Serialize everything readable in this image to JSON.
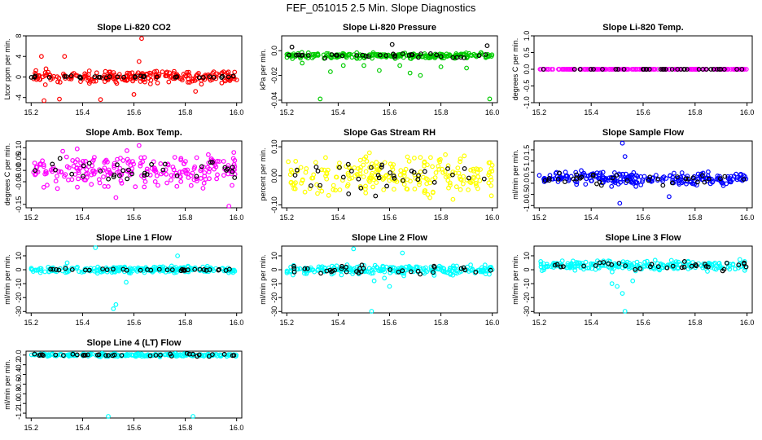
{
  "figure": {
    "title": "FEF_051015  2.5 Min. Slope Diagnostics"
  },
  "chart_data": [
    {
      "type": "scatter",
      "title": "Slope Li-820 CO2",
      "ylabel": "Ltcor ppm per min.",
      "xlim": [
        15.18,
        16.02
      ],
      "ylim": [
        -5,
        8
      ],
      "xticks": [
        "15.2",
        "15.4",
        "15.6",
        "15.8",
        "16.0"
      ],
      "yticks": [
        {
          "v": -4,
          "l": "-4"
        },
        {
          "v": 0,
          "l": "0"
        },
        {
          "v": 4,
          "l": "4"
        },
        {
          "v": 8,
          "l": "8"
        }
      ],
      "series": [
        {
          "color": "#ff0000",
          "center": 0,
          "spread": 0.8,
          "count": 230,
          "seed": 11,
          "extra": [
            [
              15.63,
              7.5
            ],
            [
              15.31,
              -4.3
            ],
            [
              15.25,
              -4.6
            ],
            [
              15.47,
              -4.4
            ],
            [
              15.33,
              4.0
            ],
            [
              15.24,
              4.0
            ],
            [
              15.6,
              -3.4
            ],
            [
              15.62,
              3.0
            ],
            [
              15.84,
              -2.8
            ]
          ]
        },
        {
          "color": "#000000",
          "center": 0,
          "spread": 0.15,
          "count": 35,
          "seed": 12,
          "extra": []
        }
      ]
    },
    {
      "type": "scatter",
      "title": "Slope Li-820 Pressure",
      "ylabel": "kPa per min.",
      "xlim": [
        15.18,
        16.02
      ],
      "ylim": [
        -0.042,
        0.012
      ],
      "xticks": [
        "15.2",
        "15.4",
        "15.6",
        "15.8",
        "16.0"
      ],
      "yticks": [
        {
          "v": -0.04,
          "l": "-0.04"
        },
        {
          "v": -0.02,
          "l": "-0.02"
        },
        {
          "v": 0,
          "l": "0.0"
        }
      ],
      "series": [
        {
          "color": "#00cc00",
          "center": -0.004,
          "spread": 0.0015,
          "count": 230,
          "seed": 21,
          "extra": [
            [
              15.33,
              -0.039
            ],
            [
              15.99,
              -0.039
            ],
            [
              15.5,
              -0.012
            ],
            [
              15.56,
              -0.016
            ],
            [
              15.68,
              -0.018
            ],
            [
              15.8,
              -0.013
            ],
            [
              15.26,
              -0.01
            ],
            [
              15.42,
              -0.012
            ],
            [
              15.9,
              -0.014
            ],
            [
              15.72,
              -0.02
            ],
            [
              15.37,
              -0.017
            ],
            [
              15.64,
              -0.012
            ]
          ]
        },
        {
          "color": "#000000",
          "center": -0.004,
          "spread": 0.0012,
          "count": 35,
          "seed": 22,
          "extra": [
            [
              15.61,
              0.005
            ],
            [
              15.98,
              0.004
            ],
            [
              15.22,
              0.003
            ]
          ]
        }
      ]
    },
    {
      "type": "scatter",
      "title": "Slope Li-820 Temp.",
      "ylabel": "degrees C per min.",
      "xlim": [
        15.18,
        16.02
      ],
      "ylim": [
        -1,
        1
      ],
      "xticks": [
        "15.2",
        "15.4",
        "15.6",
        "15.8",
        "16.0"
      ],
      "yticks": [
        {
          "v": -1,
          "l": "-1.0"
        },
        {
          "v": -0.5,
          "l": "-0.5"
        },
        {
          "v": 0,
          "l": "0.0"
        },
        {
          "v": 0.5,
          "l": "0.5"
        },
        {
          "v": 1,
          "l": "1.0"
        }
      ],
      "series": [
        {
          "color": "#ff00ff",
          "center": 0,
          "spread": 0.0,
          "count": 230,
          "seed": 31,
          "extra": []
        },
        {
          "color": "#000000",
          "center": 0,
          "spread": 0.0,
          "count": 35,
          "seed": 32,
          "extra": []
        }
      ]
    },
    {
      "type": "scatter",
      "title": "Slope Amb. Box Temp.",
      "ylabel": "degrees C per min.",
      "xlim": [
        15.18,
        16.02
      ],
      "ylim": [
        -0.165,
        0.13
      ],
      "xticks": [
        "15.2",
        "15.4",
        "15.6",
        "15.8",
        "16.0"
      ],
      "yticks": [
        {
          "v": -0.15,
          "l": "-0.15"
        },
        {
          "v": -0.05,
          "l": "-0.05"
        },
        {
          "v": 0,
          "l": "0.00"
        },
        {
          "v": 0.05,
          "l": "0.05"
        },
        {
          "v": 0.1,
          "l": "0.10"
        }
      ],
      "series": [
        {
          "color": "#ff00ff",
          "center": 0.0,
          "spread": 0.05,
          "count": 230,
          "seed": 41,
          "extra": [
            [
              15.97,
              -0.16
            ],
            [
              15.53,
              -0.12
            ],
            [
              15.62,
              0.11
            ]
          ]
        },
        {
          "color": "#000000",
          "center": 0.0,
          "spread": 0.03,
          "count": 35,
          "seed": 42,
          "extra": []
        }
      ]
    },
    {
      "type": "scatter",
      "title": "Slope Gas Stream RH",
      "ylabel": "percent per min.",
      "xlim": [
        15.18,
        16.02
      ],
      "ylim": [
        -0.11,
        0.12
      ],
      "xticks": [
        "15.2",
        "15.4",
        "15.6",
        "15.8",
        "16.0"
      ],
      "yticks": [
        {
          "v": -0.1,
          "l": "-0.10"
        },
        {
          "v": 0,
          "l": "0.00"
        },
        {
          "v": 0.1,
          "l": "0.10"
        }
      ],
      "series": [
        {
          "color": "#ffff00",
          "center": 0,
          "spread": 0.045,
          "count": 230,
          "seed": 51,
          "extra": []
        },
        {
          "color": "#000000",
          "center": 0,
          "spread": 0.04,
          "count": 35,
          "seed": 52,
          "extra": []
        }
      ]
    },
    {
      "type": "scatter",
      "title": "Slope Sample Flow",
      "ylabel": "ml/min per min.",
      "xlim": [
        15.18,
        16.02
      ],
      "ylim": [
        -1.1,
        1.9
      ],
      "xticks": [
        "15.2",
        "15.4",
        "15.6",
        "15.8",
        "16.0"
      ],
      "yticks": [
        {
          "v": -1,
          "l": "-1.0"
        },
        {
          "v": -0.5,
          "l": "-0.5"
        },
        {
          "v": 0,
          "l": "0.0"
        },
        {
          "v": 0.5,
          "l": "0.5"
        },
        {
          "v": 1,
          "l": "1.0"
        },
        {
          "v": 1.5,
          "l": "1.5"
        }
      ],
      "series": [
        {
          "color": "#0000ff",
          "center": 0.2,
          "spread": 0.2,
          "count": 230,
          "seed": 61,
          "extra": [
            [
              15.52,
              1.8
            ],
            [
              15.53,
              1.2
            ],
            [
              15.51,
              -0.9
            ],
            [
              15.7,
              -0.6
            ]
          ]
        },
        {
          "color": "#000000",
          "center": 0.2,
          "spread": 0.2,
          "count": 35,
          "seed": 62,
          "extra": []
        }
      ]
    },
    {
      "type": "scatter",
      "title": "Slope Line 1 Flow",
      "ylabel": "ml/min per min.",
      "xlim": [
        15.18,
        16.02
      ],
      "ylim": [
        -31,
        17
      ],
      "xticks": [
        "15.2",
        "15.4",
        "15.6",
        "15.8",
        "16.0"
      ],
      "yticks": [
        {
          "v": -30,
          "l": "-30"
        },
        {
          "v": -20,
          "l": "-20"
        },
        {
          "v": -10,
          "l": "-10"
        },
        {
          "v": 0,
          "l": "0"
        },
        {
          "v": 10,
          "l": "10"
        }
      ],
      "series": [
        {
          "color": "#00ffff",
          "center": 0,
          "spread": 1.5,
          "count": 230,
          "seed": 71,
          "extra": [
            [
              15.45,
              16
            ],
            [
              15.53,
              -25
            ],
            [
              15.52,
              -28
            ],
            [
              15.57,
              -9
            ],
            [
              15.77,
              10
            ],
            [
              15.34,
              5
            ]
          ]
        },
        {
          "color": "#000000",
          "center": 0,
          "spread": 0.6,
          "count": 35,
          "seed": 72,
          "extra": []
        }
      ]
    },
    {
      "type": "scatter",
      "title": "Slope Line 2 Flow",
      "ylabel": "ml/min per min.",
      "xlim": [
        15.18,
        16.02
      ],
      "ylim": [
        -31,
        17
      ],
      "xticks": [
        "15.2",
        "15.4",
        "15.6",
        "15.8",
        "16.0"
      ],
      "yticks": [
        {
          "v": -30,
          "l": "-30"
        },
        {
          "v": -20,
          "l": "-20"
        },
        {
          "v": -10,
          "l": "-10"
        },
        {
          "v": 0,
          "l": "0"
        },
        {
          "v": 10,
          "l": "10"
        }
      ],
      "series": [
        {
          "color": "#00ffff",
          "center": 0,
          "spread": 2.5,
          "count": 230,
          "seed": 81,
          "extra": [
            [
              15.46,
              15
            ],
            [
              15.53,
              -30
            ],
            [
              15.54,
              -8
            ],
            [
              15.6,
              -12
            ],
            [
              15.65,
              12
            ],
            [
              15.58,
              -6
            ]
          ]
        },
        {
          "color": "#000000",
          "center": 0,
          "spread": 2,
          "count": 35,
          "seed": 82,
          "extra": []
        }
      ]
    },
    {
      "type": "scatter",
      "title": "Slope Line 3 Flow",
      "ylabel": "ml/min per min.",
      "xlim": [
        15.18,
        16.02
      ],
      "ylim": [
        -31,
        17
      ],
      "xticks": [
        "15.2",
        "15.4",
        "15.6",
        "15.8",
        "16.0"
      ],
      "yticks": [
        {
          "v": -30,
          "l": "-30"
        },
        {
          "v": -20,
          "l": "-20"
        },
        {
          "v": -10,
          "l": "-10"
        },
        {
          "v": 0,
          "l": "0"
        },
        {
          "v": 10,
          "l": "10"
        }
      ],
      "series": [
        {
          "color": "#00ffff",
          "center": 3,
          "spread": 2.5,
          "count": 230,
          "seed": 91,
          "extra": [
            [
              15.53,
              -30
            ],
            [
              15.52,
              -17
            ],
            [
              15.5,
              -12
            ],
            [
              15.48,
              -10
            ],
            [
              15.56,
              -8
            ]
          ]
        },
        {
          "color": "#000000",
          "center": 3,
          "spread": 2.5,
          "count": 35,
          "seed": 92,
          "extra": []
        }
      ]
    },
    {
      "type": "scatter",
      "title": "Slope Line 4 (LT) Flow",
      "ylabel": "ml/min per min.",
      "xlim": [
        15.18,
        16.02
      ],
      "ylim": [
        -1.3,
        0.08
      ],
      "xticks": [
        "15.2",
        "15.4",
        "15.6",
        "15.8",
        "16.0"
      ],
      "yticks": [
        {
          "v": -1.2,
          "l": "-1.2"
        },
        {
          "v": -1.0,
          "l": "-1.0"
        },
        {
          "v": -0.8,
          "l": "-0.8"
        },
        {
          "v": -0.6,
          "l": "-0.6"
        },
        {
          "v": -0.4,
          "l": "-0.4"
        },
        {
          "v": -0.2,
          "l": "-0.2"
        },
        {
          "v": 0,
          "l": "0.0"
        }
      ],
      "series": [
        {
          "color": "#00ffff",
          "center": 0,
          "spread": 0.02,
          "count": 230,
          "seed": 101,
          "extra": [
            [
              15.5,
              -1.27
            ],
            [
              15.83,
              -1.27
            ]
          ]
        },
        {
          "color": "#000000",
          "center": 0,
          "spread": 0.02,
          "count": 35,
          "seed": 102,
          "extra": []
        }
      ]
    }
  ]
}
